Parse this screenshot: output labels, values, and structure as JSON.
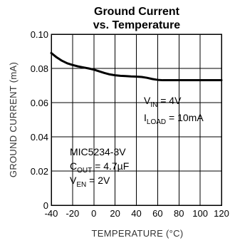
{
  "chart_data": {
    "type": "line",
    "title_line1": "Ground Current",
    "title_line2": "vs. Temperature",
    "xlabel": "TEMPERATURE (°C)",
    "ylabel": "GROUND CURRENT (mA)",
    "xlim": [
      -40,
      120
    ],
    "ylim": [
      0,
      0.1
    ],
    "x_ticks": [
      -40,
      -20,
      0,
      20,
      40,
      60,
      80,
      100,
      120
    ],
    "x_tick_labels": [
      "-40",
      "-20",
      "0",
      "20",
      "40",
      "60",
      "80",
      "100",
      "120"
    ],
    "y_ticks": [
      0,
      0.02,
      0.04,
      0.06,
      0.08,
      0.1
    ],
    "y_tick_labels": [
      "0",
      "0.02",
      "0.04",
      "0.06",
      "0.08",
      "0.10"
    ],
    "grid": true,
    "series": [
      {
        "x": [
          -40,
          -35,
          -30,
          -25,
          -20,
          -15,
          -10,
          -5,
          0,
          5,
          10,
          15,
          20,
          25,
          30,
          35,
          40,
          45,
          50,
          55,
          60,
          65,
          70,
          80,
          90,
          100,
          110,
          120
        ],
        "y": [
          0.089,
          0.0865,
          0.0845,
          0.083,
          0.082,
          0.0812,
          0.0806,
          0.08,
          0.0793,
          0.0783,
          0.0773,
          0.0765,
          0.076,
          0.0757,
          0.0755,
          0.0753,
          0.0752,
          0.075,
          0.0745,
          0.0738,
          0.0733,
          0.0731,
          0.0731,
          0.0731,
          0.0731,
          0.0731,
          0.0731,
          0.0731
        ]
      }
    ],
    "annotations": {
      "vin": {
        "main": "V",
        "sub": "IN",
        "rest": " = 4V"
      },
      "iload": {
        "main": "I",
        "sub": "LOAD",
        "rest": " = 10mA"
      },
      "device": "MIC5234-3V",
      "cout": {
        "main": "C",
        "sub": "OUT",
        "rest": " = 4.7µF"
      },
      "ven": {
        "main": "V",
        "sub": "EN",
        "rest": " = 2V"
      }
    }
  }
}
